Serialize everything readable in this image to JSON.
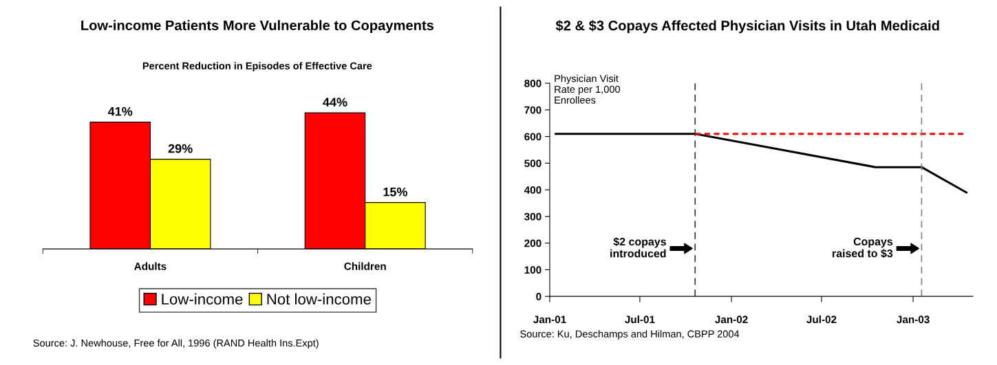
{
  "chart_data": [
    {
      "type": "bar",
      "title": "Low-income Patients More Vulnerable to Copayments",
      "subtitle": "Percent Reduction in Episodes of Effective Care",
      "categories": [
        "Adults",
        "Children"
      ],
      "series": [
        {
          "name": "Low-income",
          "color": "#ff0000",
          "values": [
            41,
            44
          ],
          "value_labels": [
            "41%",
            "44%"
          ]
        },
        {
          "name": "Not low-income",
          "color": "#ffff00",
          "values": [
            29,
            15
          ],
          "value_labels": [
            "29%",
            "15%"
          ]
        }
      ],
      "legend": "bottom",
      "grid": false,
      "annotations": [
        "Source: J. Newhouse, Free for All, 1996 (RAND Health Ins.Expt)"
      ]
    },
    {
      "type": "line",
      "title": "$2 & $3 Copays Affected Physician Visits in Utah Medicaid",
      "ylabel": "Physician Visit\nRate per 1,000\nEnrollees",
      "series": [
        {
          "color": "#000000",
          "line_style": "solid",
          "x": [
            "2001-01-13",
            "2001-10-20",
            "2002-10-17",
            "2003-01-18",
            "2003-04-18"
          ],
          "values": [
            610,
            610,
            485,
            485,
            390
          ]
        },
        {
          "color": "#ff0000",
          "line_style": "dashed",
          "x": [
            "2001-10-20",
            "2003-04-12"
          ],
          "values": [
            610,
            610
          ]
        }
      ],
      "xlim": [
        "2001-01-01",
        "2003-05-01"
      ],
      "xticks": [
        {
          "value": "2001-01-01",
          "label": "Jan-01"
        },
        {
          "value": "2001-07-01",
          "label": "Jul-01"
        },
        {
          "value": "2002-01-01",
          "label": "Jan-02"
        },
        {
          "value": "2002-07-01",
          "label": "Jul-02"
        },
        {
          "value": "2003-01-01",
          "label": "Jan-03"
        }
      ],
      "ylim": [
        0,
        800
      ],
      "yticks": [
        0,
        100,
        200,
        300,
        400,
        500,
        600,
        700,
        800
      ],
      "ref_lines": [
        {
          "axis": "x",
          "value": "2001-10-20",
          "label": "$2 copays\nintroduced",
          "color": "#333333",
          "line_style": "dashed"
        },
        {
          "axis": "x",
          "value": "2003-01-18",
          "label": "Copays\nraised to $3",
          "color": "#808080",
          "line_style": "dashed"
        }
      ],
      "grid": false,
      "legend": false,
      "marker": "none",
      "annotations": [
        "Source: Ku, Deschamps and Hilman, CBPP 2004"
      ]
    }
  ]
}
